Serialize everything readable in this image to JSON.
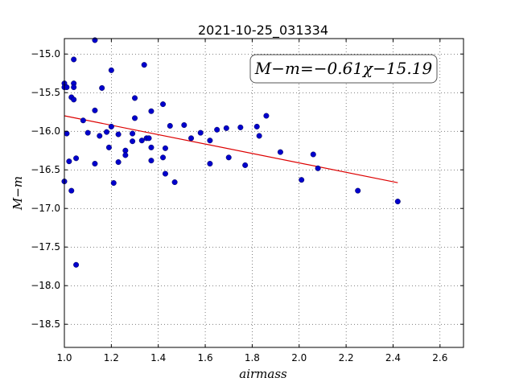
{
  "chart_data": {
    "type": "scatter",
    "title": "2021-10-25_031334",
    "xlabel": "airmass",
    "ylabel": "M−m",
    "xlim": [
      1.0,
      2.7
    ],
    "ylim": [
      -18.8,
      -14.8
    ],
    "y_inverted": true,
    "grid": true,
    "grid_style": "dotted",
    "x_ticks": [
      1.0,
      1.2,
      1.4,
      1.6,
      1.8,
      2.0,
      2.2,
      2.4,
      2.6
    ],
    "x_tick_labels": [
      "1.0",
      "1.2",
      "1.4",
      "1.6",
      "1.8",
      "2.0",
      "2.2",
      "2.4",
      "2.6"
    ],
    "y_ticks": [
      -15.0,
      -15.5,
      -16.0,
      -16.5,
      -17.0,
      -17.5,
      -18.0,
      -18.5
    ],
    "y_tick_labels": [
      "−15.0",
      "−15.5",
      "−16.0",
      "−16.5",
      "−17.0",
      "−17.5",
      "−18.0",
      "−18.5"
    ],
    "annotation": "M−m=−0.61χ−15.19",
    "fit": {
      "slope": -0.61,
      "intercept": -15.19,
      "x_range": [
        1.0,
        2.42
      ],
      "color": "#dd0000"
    },
    "point_color": "#0000cc",
    "points": [
      [
        1.0,
        -15.38
      ],
      [
        1.0,
        -15.43
      ],
      [
        1.0,
        -16.65
      ],
      [
        1.01,
        -15.43
      ],
      [
        1.01,
        -16.03
      ],
      [
        1.02,
        -16.39
      ],
      [
        1.03,
        -15.56
      ],
      [
        1.03,
        -16.77
      ],
      [
        1.04,
        -15.07
      ],
      [
        1.04,
        -15.38
      ],
      [
        1.04,
        -15.43
      ],
      [
        1.04,
        -15.59
      ],
      [
        1.05,
        -16.35
      ],
      [
        1.05,
        -17.73
      ],
      [
        1.08,
        -15.86
      ],
      [
        1.1,
        -16.02
      ],
      [
        1.13,
        -14.82
      ],
      [
        1.13,
        -16.42
      ],
      [
        1.13,
        -15.73
      ],
      [
        1.15,
        -16.06
      ],
      [
        1.16,
        -15.44
      ],
      [
        1.18,
        -16.01
      ],
      [
        1.19,
        -16.21
      ],
      [
        1.2,
        -15.94
      ],
      [
        1.2,
        -15.21
      ],
      [
        1.21,
        -16.67
      ],
      [
        1.23,
        -16.04
      ],
      [
        1.23,
        -16.4
      ],
      [
        1.26,
        -16.25
      ],
      [
        1.26,
        -16.31
      ],
      [
        1.29,
        -16.03
      ],
      [
        1.29,
        -16.13
      ],
      [
        1.3,
        -15.83
      ],
      [
        1.3,
        -15.57
      ],
      [
        1.33,
        -16.12
      ],
      [
        1.34,
        -15.14
      ],
      [
        1.35,
        -16.09
      ],
      [
        1.36,
        -16.09
      ],
      [
        1.37,
        -16.21
      ],
      [
        1.37,
        -15.74
      ],
      [
        1.37,
        -16.38
      ],
      [
        1.42,
        -15.65
      ],
      [
        1.42,
        -16.34
      ],
      [
        1.43,
        -16.22
      ],
      [
        1.43,
        -16.55
      ],
      [
        1.45,
        -15.93
      ],
      [
        1.47,
        -16.66
      ],
      [
        1.51,
        -15.92
      ],
      [
        1.54,
        -16.09
      ],
      [
        1.58,
        -16.02
      ],
      [
        1.62,
        -16.12
      ],
      [
        1.62,
        -16.42
      ],
      [
        1.65,
        -15.98
      ],
      [
        1.69,
        -15.96
      ],
      [
        1.7,
        -16.34
      ],
      [
        1.75,
        -15.95
      ],
      [
        1.77,
        -16.44
      ],
      [
        1.82,
        -15.94
      ],
      [
        1.83,
        -16.06
      ],
      [
        1.86,
        -15.8
      ],
      [
        1.92,
        -16.27
      ],
      [
        2.01,
        -16.63
      ],
      [
        2.06,
        -16.3
      ],
      [
        2.08,
        -16.48
      ],
      [
        2.25,
        -16.77
      ],
      [
        2.42,
        -16.91
      ]
    ]
  }
}
